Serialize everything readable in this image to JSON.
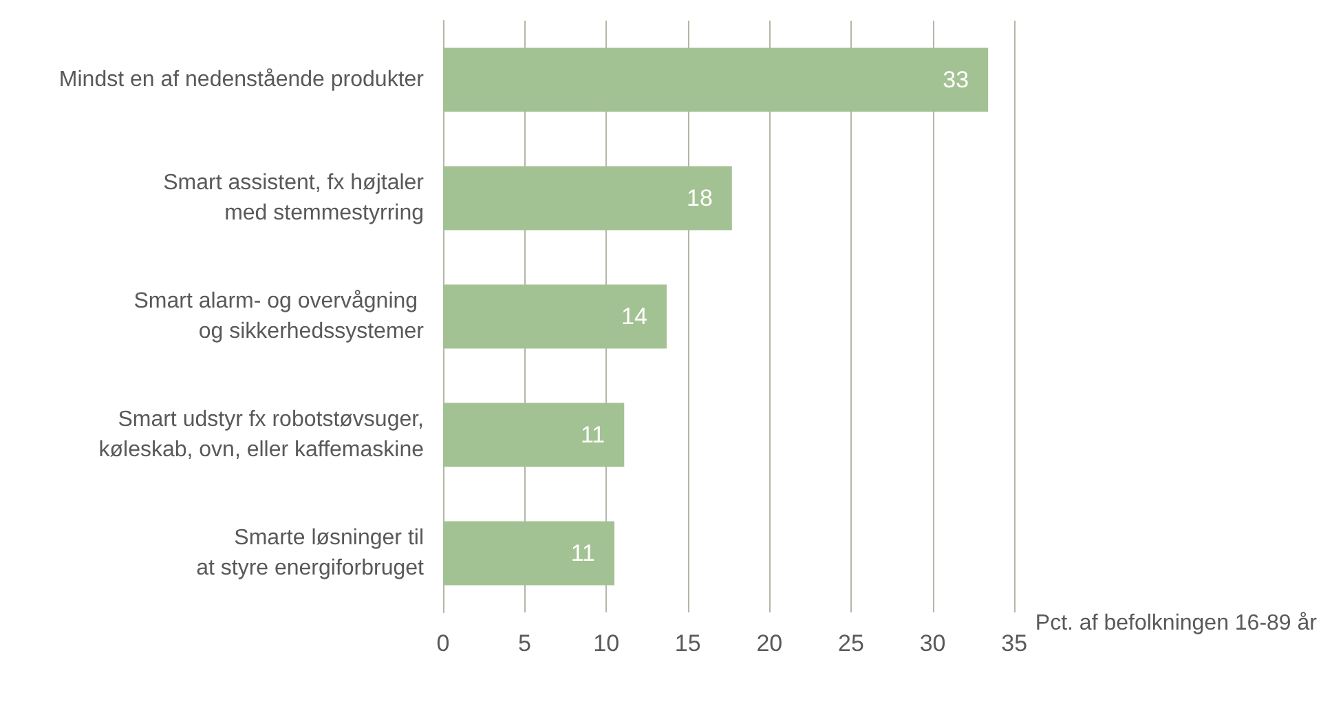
{
  "chart_data": {
    "type": "bar",
    "orientation": "horizontal",
    "categories": [
      "Mindst en af nedenstående produkter",
      "Smart assistent, fx højtaler\nmed stemmestyrring",
      "Smart alarm- og overvågning \nog sikkerhedssystemer",
      "Smart udstyr fx robotstøvsuger,\nkøleskab, ovn, eller kaffemaskine",
      "Smarte løsninger til\nat styre energiforbruget"
    ],
    "values": [
      33.4,
      17.7,
      13.7,
      11.1,
      10.5
    ],
    "value_labels": [
      "33",
      "18",
      "14",
      "11",
      "11"
    ],
    "color": "#a3c293",
    "xlim": [
      0,
      35
    ],
    "xticks": [
      0,
      5,
      10,
      15,
      20,
      25,
      30,
      35
    ],
    "xlabel": "Pct. af befolkningen 16-89 år",
    "grid": "x"
  }
}
